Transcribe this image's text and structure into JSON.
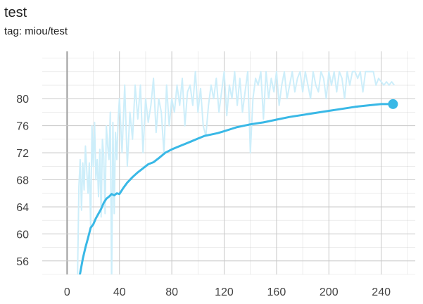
{
  "header": {
    "title": "test",
    "tag": "tag: miou/test"
  },
  "colors": {
    "smoothed": "#39b8e6",
    "raw": "#cdeefa",
    "grid": "#c9c9c9",
    "zero_line": "#9e9e9e"
  },
  "chart_data": {
    "type": "line",
    "title": "test",
    "xlabel": "",
    "ylabel": "",
    "xlim": [
      -19,
      266
    ],
    "ylim": [
      54,
      87
    ],
    "grid": true,
    "x_ticks": [
      "0",
      "40",
      "80",
      "120",
      "160",
      "200",
      "240"
    ],
    "y_ticks": [
      "56",
      "60",
      "64",
      "68",
      "72",
      "76",
      "80"
    ],
    "x_tick_values": [
      0,
      40,
      80,
      120,
      160,
      200,
      240
    ],
    "y_tick_values": [
      56,
      60,
      64,
      68,
      72,
      76,
      80
    ],
    "series": [
      {
        "role": "smoothed",
        "x": [
          6,
          8,
          10,
          12,
          14,
          16,
          18,
          20,
          22,
          24,
          26,
          28,
          30,
          32,
          34,
          36,
          38,
          40,
          43,
          46,
          50,
          54,
          58,
          62,
          66,
          70,
          75,
          80,
          85,
          90,
          95,
          100,
          105,
          110,
          115,
          120,
          125,
          130,
          135,
          140,
          150,
          160,
          170,
          180,
          190,
          200,
          210,
          220,
          230,
          240,
          249
        ],
        "y": [
          50.5,
          52.8,
          54.2,
          56.3,
          58.0,
          59.4,
          60.9,
          61.4,
          62.3,
          63.0,
          63.7,
          64.6,
          65.2,
          65.5,
          65.9,
          65.7,
          66.0,
          65.9,
          66.8,
          67.6,
          68.4,
          69.1,
          69.7,
          70.3,
          70.6,
          71.2,
          72.0,
          72.5,
          72.9,
          73.3,
          73.7,
          74.1,
          74.5,
          74.7,
          74.9,
          75.2,
          75.5,
          75.8,
          76.0,
          76.2,
          76.5,
          76.9,
          77.3,
          77.6,
          77.9,
          78.2,
          78.5,
          78.8,
          79.0,
          79.2,
          79.2
        ]
      },
      {
        "role": "raw",
        "x": [
          8,
          9,
          10,
          11,
          12,
          13,
          14,
          15,
          16,
          17,
          18,
          19,
          20,
          21,
          22,
          23,
          24,
          25,
          26,
          27,
          28,
          29,
          30,
          31,
          32,
          33,
          34,
          35,
          36,
          37,
          38,
          39,
          40,
          42,
          44,
          46,
          48,
          50,
          52,
          54,
          56,
          58,
          60,
          62,
          64,
          66,
          68,
          70,
          72,
          74,
          76,
          78,
          80,
          82,
          84,
          86,
          88,
          90,
          92,
          94,
          96,
          98,
          100,
          102,
          104,
          106,
          108,
          110,
          112,
          114,
          116,
          118,
          120,
          122,
          124,
          126,
          128,
          130,
          132,
          134,
          136,
          138,
          140,
          142,
          144,
          146,
          148,
          150,
          152,
          154,
          156,
          158,
          160,
          162,
          164,
          166,
          168,
          170,
          172,
          174,
          176,
          178,
          180,
          182,
          184,
          186,
          188,
          190,
          192,
          194,
          196,
          198,
          200,
          202,
          204,
          206,
          208,
          210,
          212,
          214,
          216,
          218,
          220,
          222,
          224,
          226,
          228,
          230,
          232,
          234,
          236,
          238,
          240,
          242,
          244,
          246,
          248,
          250
        ],
        "y": [
          54.0,
          67.0,
          71.0,
          63.5,
          70.5,
          66.5,
          73.0,
          69.5,
          66.0,
          70.5,
          61.0,
          76.0,
          70.0,
          76.5,
          68.0,
          71.0,
          65.5,
          72.5,
          62.5,
          74.0,
          71.5,
          63.0,
          76.0,
          73.0,
          71.0,
          78.0,
          52.0,
          76.5,
          63.0,
          75.0,
          71.0,
          77.0,
          80.0,
          72.0,
          82.0,
          70.0,
          78.0,
          74.0,
          82.0,
          77.0,
          82.0,
          72.0,
          80.0,
          76.5,
          79.0,
          83.0,
          75.0,
          80.0,
          78.0,
          72.0,
          82.0,
          76.0,
          80.0,
          78.0,
          82.0,
          79.0,
          83.0,
          76.0,
          81.0,
          82.0,
          79.0,
          84.0,
          78.0,
          81.5,
          76.0,
          74.5,
          79.0,
          82.0,
          80.0,
          83.0,
          78.0,
          81.0,
          84.0,
          77.5,
          82.0,
          80.0,
          84.0,
          79.0,
          83.0,
          78.0,
          81.0,
          84.0,
          72.0,
          80.0,
          83.0,
          82.0,
          84.0,
          77.0,
          84.0,
          80.0,
          83.0,
          81.0,
          84.0,
          79.0,
          82.0,
          84.0,
          80.0,
          82.0,
          84.0,
          81.0,
          83.0,
          84.0,
          81.0,
          84.0,
          82.0,
          80.0,
          84.0,
          82.0,
          81.0,
          84.0,
          83.0,
          80.0,
          84.0,
          82.0,
          84.0,
          81.0,
          84.0,
          83.0,
          80.0,
          84.0,
          82.0,
          84.0,
          84.0,
          83.0,
          84.0,
          81.0,
          84.0,
          84.0,
          84.0,
          84.0,
          82.0,
          83.0,
          82.5,
          82.0,
          82.5,
          82.0,
          82.5,
          82.0
        ]
      }
    ]
  }
}
